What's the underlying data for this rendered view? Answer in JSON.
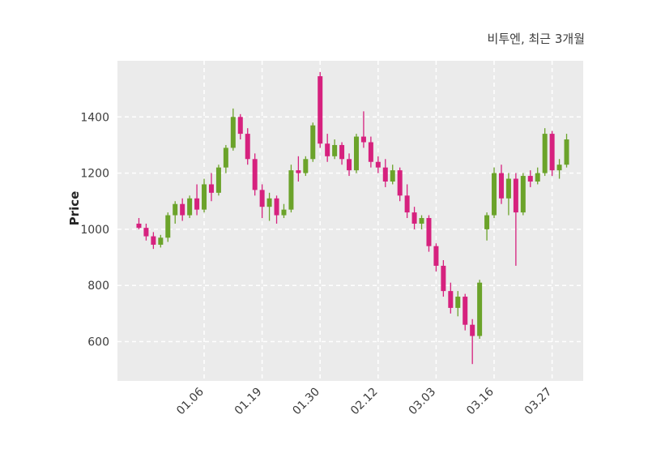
{
  "title": "비투엔, 최근 3개월",
  "ylabel": "Price",
  "chart_data": {
    "type": "candlestick",
    "title": "비투엔, 최근 3개월",
    "xlabel": "",
    "ylabel": "Price",
    "ylim": [
      460,
      1600
    ],
    "yticks": [
      600,
      800,
      1000,
      1200,
      1400
    ],
    "xtick_labels": [
      "01.06",
      "01.19",
      "01.30",
      "02.12",
      "03.03",
      "03.16",
      "03.27"
    ],
    "xtick_indices": [
      9,
      17,
      25,
      33,
      41,
      49,
      57
    ],
    "grid": true,
    "legend": "none",
    "up_color": "#6ba32a",
    "down_color": "#d6217e",
    "plot_bg": "#ebebeb",
    "grid_color": "#ffffff",
    "figure_bg": "#ffffff",
    "candles_format": [
      "open",
      "high",
      "low",
      "close"
    ],
    "candles": [
      [
        1020,
        1040,
        1000,
        1005
      ],
      [
        1005,
        1020,
        960,
        975
      ],
      [
        975,
        990,
        930,
        945
      ],
      [
        945,
        980,
        935,
        970
      ],
      [
        970,
        1060,
        955,
        1050
      ],
      [
        1050,
        1100,
        1020,
        1090
      ],
      [
        1090,
        1110,
        1030,
        1050
      ],
      [
        1050,
        1120,
        1040,
        1110
      ],
      [
        1110,
        1160,
        1050,
        1070
      ],
      [
        1070,
        1180,
        1060,
        1160
      ],
      [
        1160,
        1200,
        1100,
        1130
      ],
      [
        1130,
        1230,
        1120,
        1220
      ],
      [
        1220,
        1300,
        1200,
        1290
      ],
      [
        1290,
        1430,
        1280,
        1400
      ],
      [
        1400,
        1410,
        1320,
        1340
      ],
      [
        1340,
        1360,
        1230,
        1250
      ],
      [
        1250,
        1270,
        1120,
        1140
      ],
      [
        1140,
        1160,
        1040,
        1080
      ],
      [
        1080,
        1130,
        1030,
        1110
      ],
      [
        1110,
        1120,
        1020,
        1050
      ],
      [
        1050,
        1090,
        1040,
        1070
      ],
      [
        1070,
        1230,
        1060,
        1210
      ],
      [
        1210,
        1260,
        1170,
        1200
      ],
      [
        1200,
        1260,
        1190,
        1250
      ],
      [
        1250,
        1380,
        1240,
        1370
      ],
      [
        1545,
        1560,
        1290,
        1305
      ],
      [
        1305,
        1340,
        1240,
        1260
      ],
      [
        1260,
        1320,
        1250,
        1300
      ],
      [
        1300,
        1310,
        1230,
        1250
      ],
      [
        1250,
        1270,
        1190,
        1210
      ],
      [
        1210,
        1340,
        1200,
        1330
      ],
      [
        1330,
        1420,
        1290,
        1310
      ],
      [
        1310,
        1330,
        1220,
        1240
      ],
      [
        1240,
        1260,
        1200,
        1220
      ],
      [
        1220,
        1250,
        1150,
        1170
      ],
      [
        1170,
        1230,
        1160,
        1210
      ],
      [
        1210,
        1220,
        1100,
        1120
      ],
      [
        1120,
        1160,
        1040,
        1060
      ],
      [
        1060,
        1080,
        1000,
        1020
      ],
      [
        1020,
        1050,
        1000,
        1040
      ],
      [
        1040,
        1050,
        920,
        940
      ],
      [
        940,
        950,
        850,
        870
      ],
      [
        870,
        890,
        760,
        780
      ],
      [
        780,
        810,
        700,
        720
      ],
      [
        720,
        780,
        690,
        760
      ],
      [
        760,
        770,
        640,
        660
      ],
      [
        660,
        680,
        520,
        620
      ],
      [
        620,
        820,
        610,
        810
      ],
      [
        1000,
        1060,
        960,
        1050
      ],
      [
        1050,
        1220,
        1040,
        1200
      ],
      [
        1200,
        1230,
        1090,
        1110
      ],
      [
        1110,
        1200,
        1050,
        1180
      ],
      [
        1180,
        1200,
        870,
        1060
      ],
      [
        1060,
        1200,
        1050,
        1190
      ],
      [
        1190,
        1210,
        1150,
        1170
      ],
      [
        1170,
        1220,
        1160,
        1200
      ],
      [
        1200,
        1360,
        1190,
        1340
      ],
      [
        1340,
        1350,
        1190,
        1210
      ],
      [
        1210,
        1250,
        1180,
        1230
      ],
      [
        1230,
        1340,
        1220,
        1320
      ]
    ]
  }
}
